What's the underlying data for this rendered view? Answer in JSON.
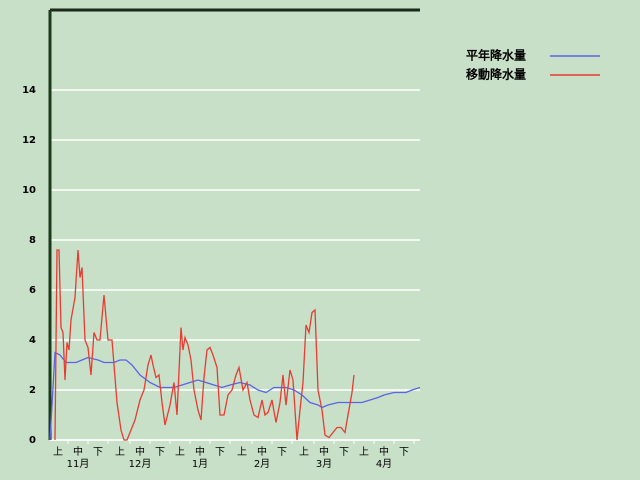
{
  "chart_data": {
    "type": "line",
    "xlim": [
      0,
      185
    ],
    "ylim": [
      0,
      17.2
    ],
    "yticks": [
      0,
      2,
      4,
      6,
      8,
      10,
      12,
      14
    ],
    "xticks": [
      {
        "value": 4,
        "label": "上"
      },
      {
        "value": 14,
        "label": "中"
      },
      {
        "value": 24,
        "label": "下"
      },
      {
        "value": 35,
        "label": "上"
      },
      {
        "value": 45,
        "label": "中"
      },
      {
        "value": 55,
        "label": "下"
      },
      {
        "value": 65,
        "label": "上"
      },
      {
        "value": 75,
        "label": "中"
      },
      {
        "value": 85,
        "label": "下"
      },
      {
        "value": 96,
        "label": "上"
      },
      {
        "value": 106,
        "label": "中"
      },
      {
        "value": 116,
        "label": "下"
      },
      {
        "value": 127,
        "label": "上"
      },
      {
        "value": 137,
        "label": "中"
      },
      {
        "value": 147,
        "label": "下"
      },
      {
        "value": 157,
        "label": "上"
      },
      {
        "value": 167,
        "label": "中"
      },
      {
        "value": 177,
        "label": "下"
      }
    ],
    "months": [
      "11月",
      "12月",
      "1月",
      "2月",
      "3月",
      "4月"
    ],
    "grid": true,
    "legend": "top-right",
    "series": [
      {
        "name": "平年降水量",
        "color": "#5a64e6",
        "x": [
          0,
          2.5,
          5,
          8,
          13,
          16,
          19,
          24,
          27,
          32,
          35,
          38,
          41,
          45,
          50,
          55,
          62,
          66,
          70,
          74,
          78,
          82,
          86,
          90,
          95,
          100,
          104,
          108,
          112,
          118,
          122,
          126,
          130,
          134,
          136,
          139,
          144,
          152,
          156,
          160,
          164,
          167,
          172,
          178,
          181,
          185
        ],
        "values": [
          0,
          3.5,
          3.4,
          3.1,
          3.1,
          3.2,
          3.3,
          3.2,
          3.1,
          3.1,
          3.2,
          3.2,
          3.0,
          2.6,
          2.3,
          2.1,
          2.1,
          2.2,
          2.3,
          2.4,
          2.3,
          2.2,
          2.1,
          2.2,
          2.3,
          2.2,
          2.0,
          1.9,
          2.1,
          2.1,
          2.0,
          1.8,
          1.5,
          1.4,
          1.3,
          1.4,
          1.5,
          1.5,
          1.5,
          1.6,
          1.7,
          1.8,
          1.9,
          1.9,
          2.0,
          2.1
        ]
      },
      {
        "name": "移動降水量",
        "color": "#e63c32",
        "x": [
          2.5,
          3.5,
          4.5,
          5.5,
          6.5,
          7.5,
          8.5,
          9.5,
          10.5,
          12.5,
          14,
          15,
          16,
          17.5,
          19,
          20.5,
          22,
          23.5,
          25,
          27,
          29,
          31,
          33.5,
          35.5,
          37,
          38.5,
          40,
          42.5,
          45,
          47,
          49,
          50.5,
          51.5,
          53,
          54.5,
          56,
          57.5,
          60,
          62,
          63.5,
          65.5,
          66.5,
          67.5,
          69,
          70.5,
          72,
          74,
          75.5,
          77,
          78.5,
          80,
          81.5,
          83.5,
          85,
          87,
          89,
          91,
          93,
          94.5,
          96.5,
          98.5,
          100,
          102,
          104,
          106,
          107.5,
          109,
          111,
          113,
          115,
          116.5,
          118,
          120,
          121.5,
          123.5,
          125,
          126.5,
          128,
          129.5,
          131,
          132.5,
          134,
          136,
          137.5,
          139.5,
          141.5,
          143.5,
          145.5,
          147.5,
          149,
          151,
          152
        ],
        "values": [
          0,
          7.6,
          7.6,
          4.5,
          4.3,
          2.4,
          3.9,
          3.6,
          4.8,
          5.7,
          7.6,
          6.5,
          6.9,
          4.0,
          3.7,
          2.6,
          4.3,
          4.0,
          4.0,
          5.8,
          4.0,
          4.0,
          1.5,
          0.4,
          0,
          0,
          0.3,
          0.8,
          1.6,
          2.0,
          3.0,
          3.4,
          3.0,
          2.5,
          2.6,
          1.5,
          0.6,
          1.4,
          2.3,
          1.0,
          4.5,
          3.6,
          4.1,
          3.8,
          3.2,
          2.0,
          1.2,
          0.8,
          2.5,
          3.6,
          3.7,
          3.4,
          2.9,
          1.0,
          1.0,
          1.8,
          2.0,
          2.6,
          2.9,
          2.0,
          2.3,
          1.6,
          1.0,
          0.9,
          1.6,
          1.0,
          1.1,
          1.6,
          0.7,
          1.5,
          2.6,
          1.4,
          2.8,
          2.4,
          0,
          1.2,
          2.3,
          4.6,
          4.3,
          5.1,
          5.2,
          2.0,
          1.2,
          0.2,
          0.1,
          0.3,
          0.5,
          0.5,
          0.3,
          1.0,
          1.9,
          2.6
        ]
      }
    ]
  }
}
